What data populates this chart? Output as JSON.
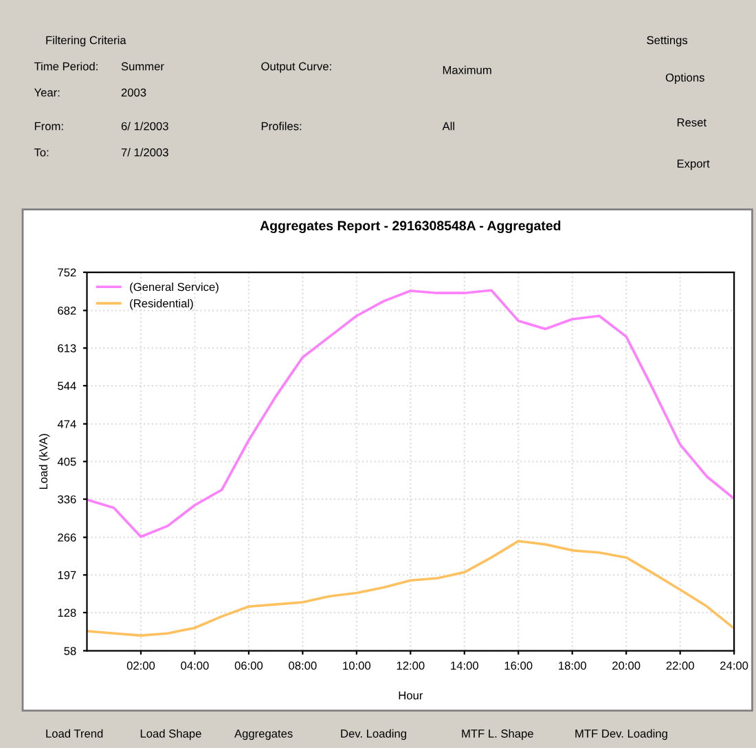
{
  "chart_data": {
    "type": "line",
    "title": "Aggregates Report - 2916308548A - Aggregated",
    "xlabel": "Hour",
    "ylabel": "Load (kVA)",
    "x": [
      0,
      1,
      2,
      3,
      4,
      5,
      6,
      7,
      8,
      9,
      10,
      11,
      12,
      13,
      14,
      15,
      16,
      17,
      18,
      19,
      20,
      21,
      22,
      23,
      24
    ],
    "series": [
      {
        "name": "(General Service)",
        "color": "#ff80ff",
        "values": [
          335,
          320,
          267,
          287,
          325,
          353,
          444,
          524,
          596,
          634,
          672,
          699,
          718,
          714,
          714,
          719,
          663,
          648,
          666,
          672,
          634,
          537,
          436,
          377,
          337
        ]
      },
      {
        "name": "(Residential)",
        "color": "#ffc060",
        "values": [
          94,
          90,
          86,
          90,
          100,
          121,
          139,
          143,
          147,
          158,
          164,
          174,
          187,
          191,
          202,
          229,
          259,
          253,
          242,
          238,
          229,
          200,
          170,
          139,
          99
        ]
      }
    ],
    "xlim": [
      0,
      24
    ],
    "xticks": [
      {
        "value": 2,
        "label": "02:00"
      },
      {
        "value": 4,
        "label": "04:00"
      },
      {
        "value": 6,
        "label": "06:00"
      },
      {
        "value": 8,
        "label": "08:00"
      },
      {
        "value": 10,
        "label": "10:00"
      },
      {
        "value": 12,
        "label": "12:00"
      },
      {
        "value": 14,
        "label": "14:00"
      },
      {
        "value": 16,
        "label": "16:00"
      },
      {
        "value": 18,
        "label": "18:00"
      },
      {
        "value": 20,
        "label": "20:00"
      },
      {
        "value": 22,
        "label": "22:00"
      },
      {
        "value": 24,
        "label": "24:00"
      }
    ],
    "ylim": [
      58,
      752
    ],
    "yticks": [
      58,
      128,
      197,
      266,
      336,
      405,
      474,
      544,
      613,
      682,
      752
    ],
    "grid": true,
    "legend": "top left",
    "marker": "none",
    "line_style": "solid",
    "annotations": [
      "Filtering Criteria",
      "Time Period:",
      "Summer",
      "Year:",
      "2003",
      "From:",
      "6/ 1/2003",
      "To:",
      "7/ 1/2003",
      "Output Curve:",
      "Maximum",
      "Profiles:",
      "All",
      "Settings",
      "Options",
      "Reset",
      "Export",
      "Load Trend",
      "Load Shape",
      "Aggregates",
      "Dev. Loading",
      "MTF L. Shape",
      "MTF Dev. Loading"
    ]
  }
}
